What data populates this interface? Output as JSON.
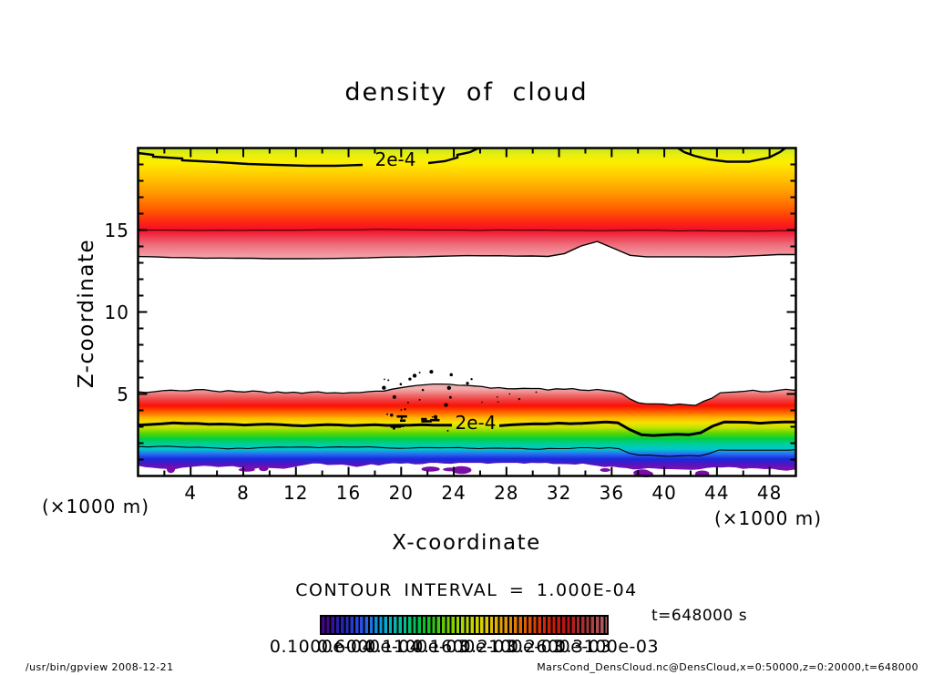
{
  "title": "density of cloud",
  "chart_data": {
    "type": "heatmap",
    "title": "density of cloud",
    "xlabel": "X-coordinate",
    "ylabel": "Z-coordinate",
    "x_unit_label": "(×1000 m)",
    "y_unit_label": "(×1000 m)",
    "xlim": [
      0,
      50
    ],
    "ylim": [
      0,
      20
    ],
    "x_major_ticks": [
      4,
      8,
      12,
      16,
      20,
      24,
      28,
      32,
      36,
      40,
      44,
      48
    ],
    "x_minor_step": 2,
    "y_major_ticks": [
      5,
      10,
      15
    ],
    "y_minor_step": 1,
    "contour_interval_label": "CONTOUR INTERVAL = 1.000E-04",
    "time_label": "t=648000 s",
    "contour_line_labels": {
      "upper": "2e-4",
      "lower": "2e-4"
    },
    "field_description": "cloud density cross-section with an upper cloud deck (z≈13.4–20 km) and a lower cloud deck (z≈0.5–5 km); dotted speckle cluster near x≈19–24, z≈3–6",
    "upper_band": {
      "z_top": 20,
      "z_bottom": 13.35,
      "contour_2e4_z": 19.3,
      "contour_3e4_z": 15.0,
      "bump": {
        "x": 34.8,
        "dz": 1.0
      },
      "gradient": [
        {
          "o": 0.0,
          "c": "#c2e428"
        },
        {
          "o": 0.06,
          "c": "#e8ee10"
        },
        {
          "o": 0.13,
          "c": "#fcee00"
        },
        {
          "o": 0.27,
          "c": "#ffc600"
        },
        {
          "o": 0.42,
          "c": "#ff9600"
        },
        {
          "o": 0.56,
          "c": "#ff5e00"
        },
        {
          "o": 0.67,
          "c": "#fe2a12"
        },
        {
          "o": 0.75,
          "c": "#f50e26"
        },
        {
          "o": 0.82,
          "c": "#ef4054"
        },
        {
          "o": 0.89,
          "c": "#ee6e7c"
        },
        {
          "o": 1.0,
          "c": "#f4a2aa"
        }
      ]
    },
    "lower_band": {
      "z_top": 5.05,
      "thick_contour_z": 3.1,
      "thin_contour_z": 1.75,
      "z_bottom": 0.55,
      "dip_x_range": [
        37.2,
        42.6
      ],
      "dip_dz": 0.72,
      "bump": {
        "x": 22.7,
        "dz": 0.28
      },
      "blob_color": "#7a0ca8",
      "gradient": [
        {
          "o": 0.0,
          "c": "#f2acac"
        },
        {
          "o": 0.08,
          "c": "#ee6a6a"
        },
        {
          "o": 0.15,
          "c": "#f23434"
        },
        {
          "o": 0.21,
          "c": "#fa1202"
        },
        {
          "o": 0.29,
          "c": "#ff6600"
        },
        {
          "o": 0.36,
          "c": "#ffb600"
        },
        {
          "o": 0.42,
          "c": "#f6e200"
        },
        {
          "o": 0.48,
          "c": "#c2e200"
        },
        {
          "o": 0.55,
          "c": "#5ad600"
        },
        {
          "o": 0.62,
          "c": "#00ce46"
        },
        {
          "o": 0.69,
          "c": "#00cea2"
        },
        {
          "o": 0.75,
          "c": "#00c6ce"
        },
        {
          "o": 0.81,
          "c": "#2a6af2"
        },
        {
          "o": 0.87,
          "c": "#162adc"
        },
        {
          "o": 0.93,
          "c": "#4e16c2"
        },
        {
          "o": 1.0,
          "c": "#7e0eae"
        }
      ]
    },
    "colorbar": {
      "background": "#000000",
      "labels": [
        "0.1000e-04",
        "0.6000e-04",
        "0.1100e-03",
        "0.1600e-03",
        "0.2100e-03",
        "0.2600e-03",
        "0.3100e-03"
      ],
      "colors": [
        "#4b0082",
        "#2222b4",
        "#2a52ea",
        "#00a8da",
        "#00c092",
        "#00c232",
        "#62cc00",
        "#b2da00",
        "#e2ce00",
        "#e29a00",
        "#e25c00",
        "#d22408",
        "#ba1212",
        "#a83434",
        "#b06464"
      ]
    }
  },
  "footer": {
    "left": "/usr/bin/gpview  2008-12-21",
    "right": "MarsCond_DensCloud.nc@DensCloud,x=0:50000,z=0:20000,t=648000"
  }
}
